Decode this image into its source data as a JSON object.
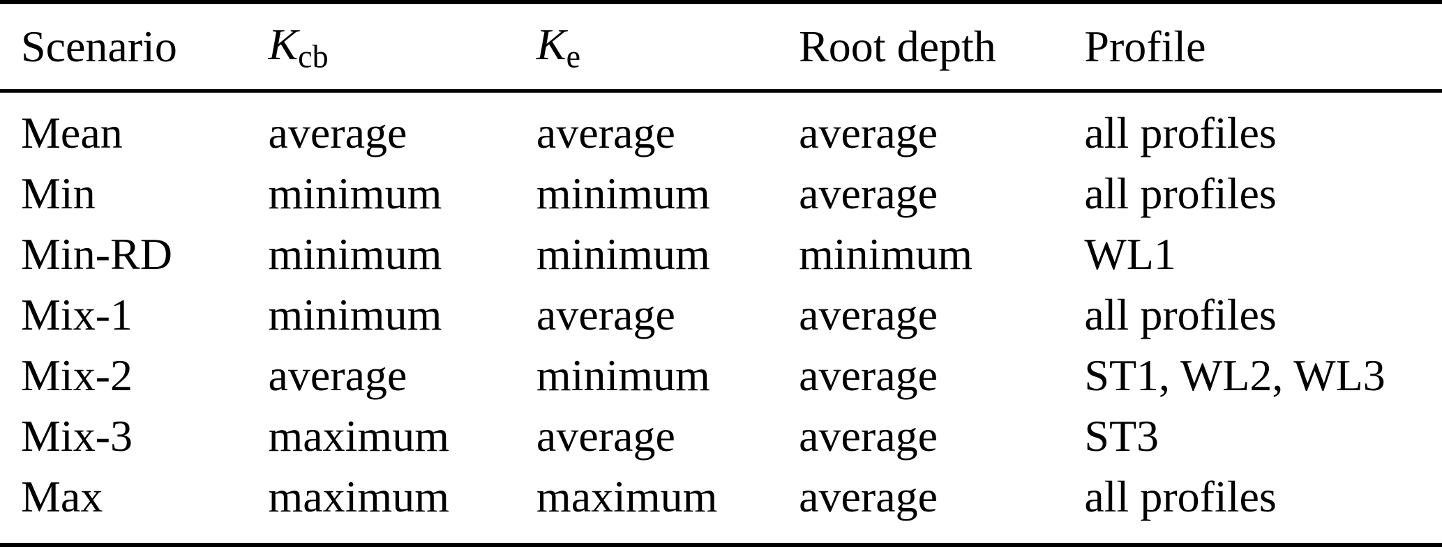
{
  "table": {
    "headers": {
      "scenario": "Scenario",
      "kcb_base": "K",
      "kcb_sub": "cb",
      "ke_base": "K",
      "ke_sub": "e",
      "root_depth": "Root depth",
      "profile": "Profile"
    },
    "rows": [
      {
        "scenario": "Mean",
        "kcb": "average",
        "ke": "average",
        "root_depth": "average",
        "profile": "all profiles"
      },
      {
        "scenario": "Min",
        "kcb": "minimum",
        "ke": "minimum",
        "root_depth": "average",
        "profile": "all profiles"
      },
      {
        "scenario": "Min-RD",
        "kcb": "minimum",
        "ke": "minimum",
        "root_depth": "minimum",
        "profile": "WL1"
      },
      {
        "scenario": "Mix-1",
        "kcb": "minimum",
        "ke": "average",
        "root_depth": "average",
        "profile": "all profiles"
      },
      {
        "scenario": "Mix-2",
        "kcb": "average",
        "ke": "minimum",
        "root_depth": "average",
        "profile": "ST1, WL2, WL3"
      },
      {
        "scenario": "Mix-3",
        "kcb": "maximum",
        "ke": "average",
        "root_depth": "average",
        "profile": "ST3"
      },
      {
        "scenario": "Max",
        "kcb": "maximum",
        "ke": "maximum",
        "root_depth": "average",
        "profile": "all profiles"
      }
    ]
  },
  "colors": {
    "text": "#000000",
    "background": "#ffffff",
    "rule": "#000000"
  }
}
